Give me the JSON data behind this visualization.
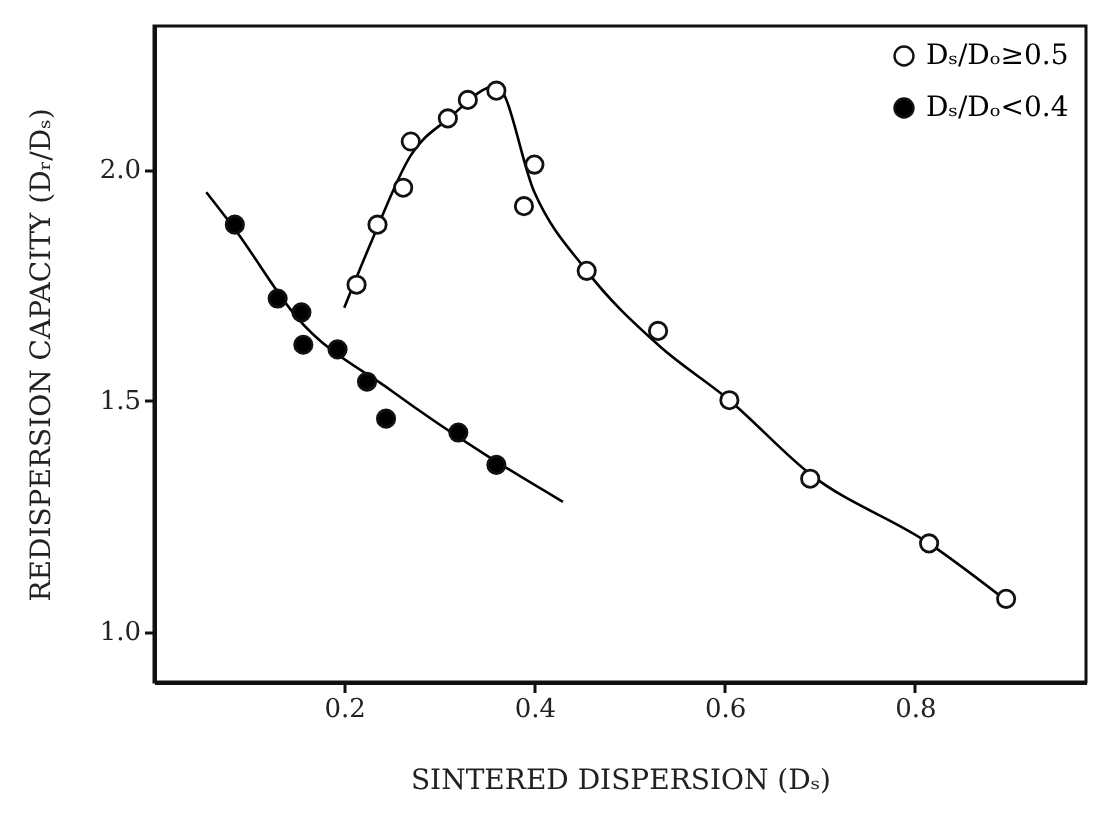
{
  "chart_data": {
    "type": "scatter",
    "xlabel": "SINTERED DISPERSION (Dₛ)",
    "ylabel": "REDISPERSION CAPACITY (Dᵣ/Dₛ)",
    "xlim": [
      0,
      0.98
    ],
    "ylim": [
      0.89,
      2.31
    ],
    "xticks": [
      0.2,
      0.4,
      0.6,
      0.8
    ],
    "yticks": [
      {
        "value": 1,
        "label": "1.0"
      },
      {
        "value": 1.5,
        "label": "1.5"
      },
      {
        "value": 2,
        "label": "2.0"
      }
    ],
    "grid": false,
    "legend": "top right",
    "line_style": "solid",
    "series": [
      {
        "name": "Dₛ/Dₒ≥0.5",
        "color": "#ffffff",
        "marker": "circle",
        "x": [
          0.213,
          0.235,
          0.262,
          0.27,
          0.309,
          0.33,
          0.36,
          0.4,
          0.389,
          0.455,
          0.53,
          0.605,
          0.69,
          0.815,
          0.896
        ],
        "values": [
          1.75,
          1.88,
          1.96,
          2.06,
          2.11,
          2.15,
          2.17,
          2.01,
          1.92,
          1.78,
          1.65,
          1.5,
          1.33,
          1.19,
          1.07
        ]
      },
      {
        "name": "Dₛ/Dₒ<0.4",
        "color": "#000000",
        "marker": "circle",
        "x": [
          0.085,
          0.13,
          0.155,
          0.157,
          0.193,
          0.224,
          0.244,
          0.32,
          0.36
        ],
        "values": [
          1.88,
          1.72,
          1.69,
          1.62,
          1.61,
          1.54,
          1.46,
          1.43,
          1.36
        ]
      },
      {
        "type": "line",
        "color": "#000000",
        "marker": "none",
        "x": [
          0.2,
          0.23,
          0.27,
          0.31,
          0.36,
          0.4,
          0.455,
          0.53,
          0.605,
          0.69,
          0.815,
          0.9
        ],
        "values": [
          1.7,
          1.85,
          2.03,
          2.11,
          2.18,
          1.95,
          1.78,
          1.62,
          1.5,
          1.34,
          1.19,
          1.06
        ]
      },
      {
        "type": "line",
        "color": "#000000",
        "marker": "none",
        "x": [
          0.055,
          0.085,
          0.15,
          0.25,
          0.35,
          0.43
        ],
        "values": [
          1.95,
          1.87,
          1.68,
          1.52,
          1.38,
          1.28
        ]
      }
    ]
  }
}
